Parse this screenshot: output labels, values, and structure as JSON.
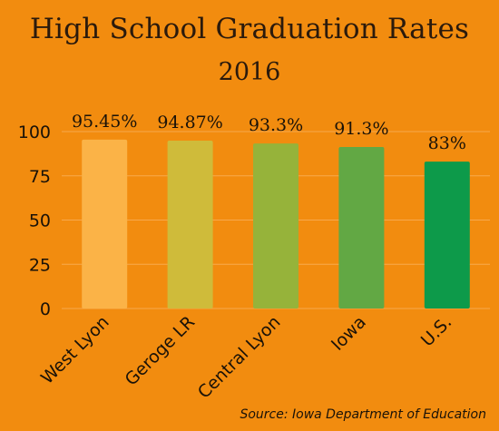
{
  "chart_data": {
    "type": "bar",
    "title": "High School Graduation Rates",
    "subtitle": "2016",
    "categories": [
      "West Lyon",
      "Geroge LR",
      "Central Lyon",
      "Iowa",
      "U.S."
    ],
    "values": [
      95.45,
      94.87,
      93.3,
      91.3,
      83
    ],
    "data_labels": [
      "95.45%",
      "94.87%",
      "93.3%",
      "91.3%",
      "83%"
    ],
    "bar_colors": [
      "#fbb347",
      "#cfbb3a",
      "#96b33a",
      "#62a844",
      "#0d9a4a"
    ],
    "yticks": [
      0,
      25,
      50,
      75,
      100
    ],
    "ylim": [
      0,
      100
    ],
    "xlabel": "",
    "ylabel": "",
    "grid": true,
    "legend": "none"
  },
  "source": "Source: Iowa Department of Education",
  "colors": {
    "background": "#f28c0f",
    "gridline": "#f7a94d",
    "text": "#1a1208"
  }
}
